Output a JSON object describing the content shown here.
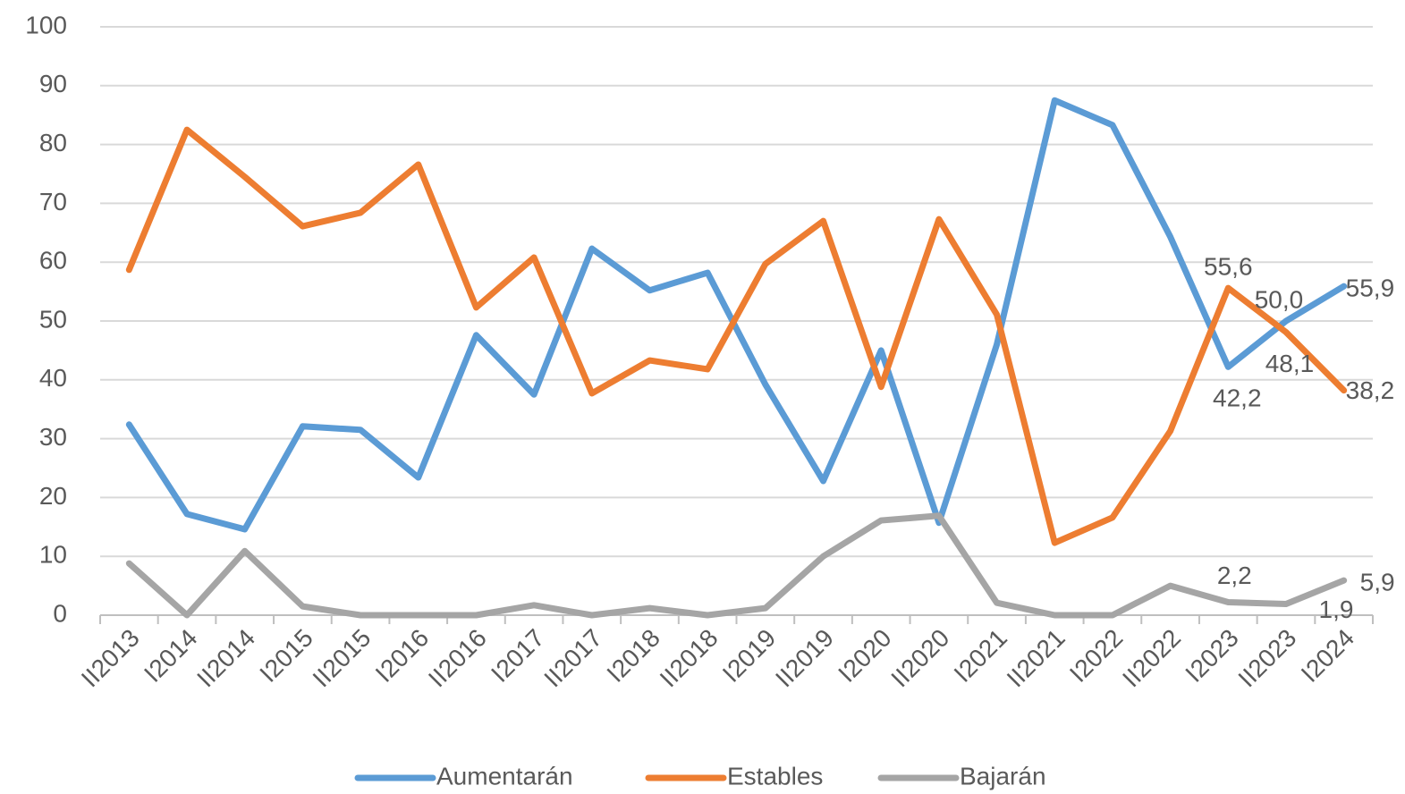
{
  "chart_data": {
    "type": "line",
    "categories": [
      "II2013",
      "I2014",
      "II2014",
      "I2015",
      "II2015",
      "I2016",
      "II2016",
      "I2017",
      "II2017",
      "I2018",
      "II2018",
      "I2019",
      "II2019",
      "I2020",
      "II2020",
      "I2021",
      "II2021",
      "I2022",
      "II2022",
      "I2023",
      "II2023",
      "I2024"
    ],
    "series": [
      {
        "name": "Aumentarán",
        "color": "#5b9bd5",
        "values": [
          32.4,
          17.2,
          14.6,
          32.1,
          31.5,
          23.4,
          47.6,
          37.5,
          62.3,
          55.2,
          58.2,
          39.2,
          22.8,
          45.0,
          15.7,
          46.0,
          87.5,
          83.3,
          64.3,
          42.2,
          50.0,
          55.9
        ],
        "value_labels": [
          null,
          null,
          null,
          null,
          null,
          null,
          null,
          null,
          null,
          null,
          null,
          null,
          null,
          null,
          null,
          null,
          null,
          null,
          null,
          "42,2",
          "50,0",
          "55,9"
        ]
      },
      {
        "name": "Estables",
        "color": "#ed7d31",
        "values": [
          58.7,
          82.5,
          74.5,
          66.1,
          68.4,
          76.6,
          52.3,
          60.8,
          37.7,
          43.3,
          41.8,
          59.7,
          67.0,
          38.8,
          67.3,
          51.1,
          12.3,
          16.6,
          31.3,
          55.6,
          48.1,
          38.2
        ],
        "value_labels": [
          null,
          null,
          null,
          null,
          null,
          null,
          null,
          null,
          null,
          null,
          null,
          null,
          null,
          null,
          null,
          null,
          null,
          null,
          null,
          "55,6",
          "48,1",
          "38,2"
        ]
      },
      {
        "name": "Bajarán",
        "color": "#a5a5a5",
        "values": [
          8.8,
          0,
          10.9,
          1.5,
          0,
          0,
          0,
          1.7,
          0,
          1.2,
          0,
          1.2,
          10.0,
          16.1,
          16.9,
          2.1,
          0,
          0,
          5.0,
          2.2,
          1.9,
          5.9
        ],
        "value_labels": [
          null,
          null,
          null,
          null,
          null,
          null,
          null,
          null,
          null,
          null,
          null,
          null,
          null,
          null,
          null,
          null,
          null,
          null,
          null,
          "2,2",
          "1,9",
          "5,9"
        ]
      }
    ],
    "ylim": [
      0,
      100
    ],
    "yticks": [
      0,
      10,
      20,
      30,
      40,
      50,
      60,
      70,
      80,
      90,
      100
    ],
    "grid": true,
    "legend": "bottom"
  }
}
